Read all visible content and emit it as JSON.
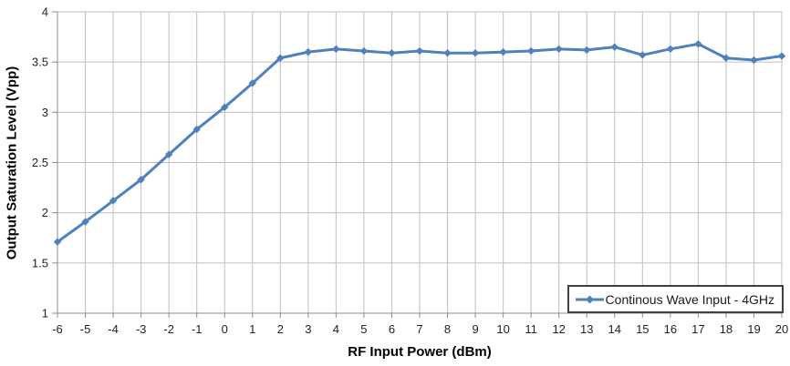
{
  "colors": {
    "series_blue": "#4F81BD",
    "gridline": "#BFBFBF",
    "axis_line": "#8C8C8C",
    "tick_label": "#1F1F1F",
    "title_text": "#000000",
    "legend_border": "#404040",
    "background": "#FFFFFF"
  },
  "chart_data": {
    "type": "line",
    "title": "",
    "xlabel": "RF Input Power (dBm)",
    "ylabel": "Output Saturation Level (Vpp)",
    "xlim": [
      -6,
      20
    ],
    "ylim": [
      1,
      4
    ],
    "x_ticks": [
      -6,
      -5,
      -4,
      -3,
      -2,
      -1,
      0,
      1,
      2,
      3,
      4,
      5,
      6,
      7,
      8,
      9,
      10,
      11,
      12,
      13,
      14,
      15,
      16,
      17,
      18,
      19,
      20
    ],
    "y_ticks": [
      1,
      1.5,
      2,
      2.5,
      3,
      3.5,
      4
    ],
    "grid": "both",
    "legend_position": "inside-bottom-right",
    "series": [
      {
        "name": "Continous Wave Input - 4GHz",
        "color": "#4F81BD",
        "marker": "diamond",
        "x": [
          -6,
          -5,
          -4,
          -3,
          -2,
          -1,
          0,
          1,
          2,
          3,
          4,
          5,
          6,
          7,
          8,
          9,
          10,
          11,
          12,
          13,
          14,
          15,
          16,
          17,
          18,
          19,
          20
        ],
        "y": [
          1.71,
          1.91,
          2.12,
          2.33,
          2.58,
          2.83,
          3.05,
          3.29,
          3.54,
          3.6,
          3.63,
          3.61,
          3.59,
          3.61,
          3.59,
          3.59,
          3.6,
          3.61,
          3.63,
          3.62,
          3.65,
          3.57,
          3.63,
          3.68,
          3.54,
          3.52,
          3.56
        ]
      }
    ]
  }
}
